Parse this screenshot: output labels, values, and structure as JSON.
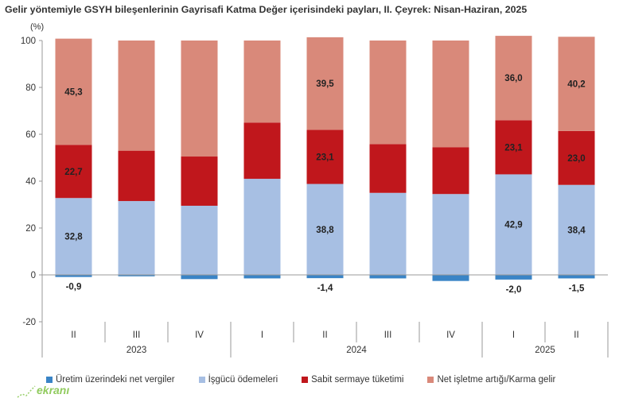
{
  "chart_data": {
    "type": "bar",
    "stacked": true,
    "title": "Gelir yöntemiyle GSYH bileşenlerinin Gayrisafi Katma Değer içerisindeki payları, II. Çeyrek: Nisan-Haziran, 2025",
    "ylabel": "(%)",
    "xlabel": "",
    "ylim": [
      -20,
      100
    ],
    "yticks": [
      "100",
      "80",
      "60",
      "40",
      "20",
      "0",
      "-20"
    ],
    "grid": false,
    "legend_position": "bottom",
    "categories": [
      "II",
      "III",
      "IV",
      "I",
      "II",
      "III",
      "IV",
      "I",
      "II"
    ],
    "year_groups": [
      {
        "label": "2023",
        "count": 3
      },
      {
        "label": "2024",
        "count": 4
      },
      {
        "label": "2025",
        "count": 2
      }
    ],
    "series": [
      {
        "name": "Üretim üzerindeki net vergiler",
        "color": "#3a84c6",
        "values": [
          -0.9,
          -0.6,
          -1.8,
          -1.5,
          -1.4,
          -1.5,
          -2.6,
          -2.0,
          -1.5
        ],
        "labels": [
          "-0,9",
          "",
          "",
          "",
          "-1,4",
          "",
          "",
          "-2,0",
          "-1,5"
        ]
      },
      {
        "name": "İşgücü ödemeleri",
        "color": "#a7bfe3",
        "values": [
          32.8,
          31.5,
          29.5,
          41.0,
          38.8,
          35.0,
          34.5,
          42.9,
          38.4
        ],
        "labels": [
          "32,8",
          "",
          "",
          "",
          "38,8",
          "",
          "",
          "42,9",
          "38,4"
        ]
      },
      {
        "name": "Sabit sermaye tüketimi",
        "color": "#c0171c",
        "values": [
          22.7,
          21.5,
          21.0,
          24.0,
          23.1,
          20.8,
          20.0,
          23.1,
          23.0
        ],
        "labels": [
          "22,7",
          "",
          "",
          "",
          "23,1",
          "",
          "",
          "23,1",
          "23,0"
        ]
      },
      {
        "name": "Net işletme artığı/Karma gelir",
        "color": "#d9897a",
        "values": [
          45.3,
          47.0,
          49.5,
          35.0,
          39.5,
          44.2,
          45.5,
          36.0,
          40.2
        ],
        "labels": [
          "45,3",
          "",
          "",
          "",
          "39,5",
          "",
          "",
          "36,0",
          "40,2"
        ]
      }
    ]
  },
  "watermark": {
    "text": "ekranı"
  },
  "colors": {
    "axis": "#9a9a9a",
    "text": "#333333"
  }
}
